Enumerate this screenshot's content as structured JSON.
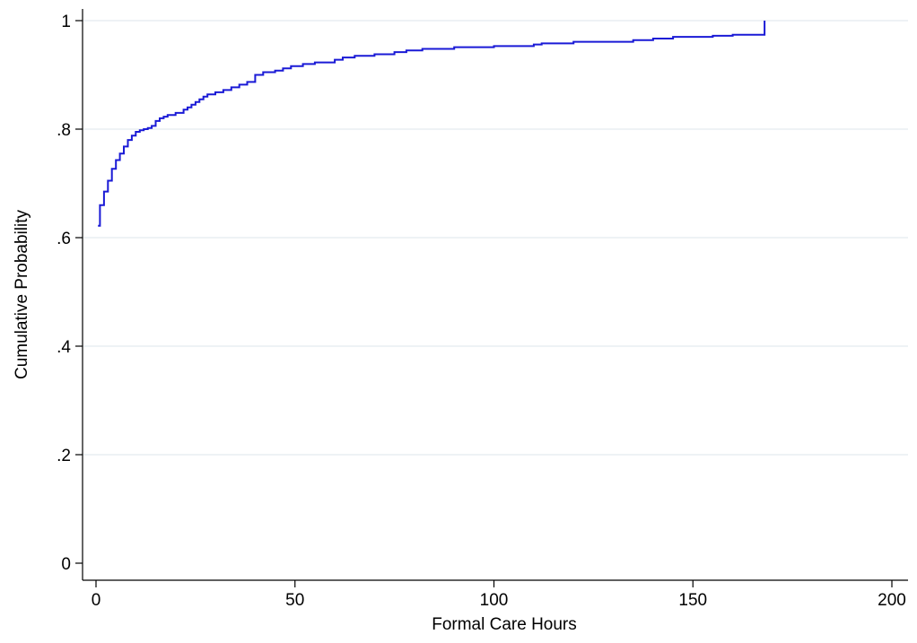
{
  "chart_data": {
    "type": "line",
    "title": "",
    "xlabel": "Formal Care Hours",
    "ylabel": "Cumulative Probability",
    "xlim": [
      0,
      200
    ],
    "ylim": [
      0,
      1
    ],
    "x_ticks": [
      {
        "value": 0,
        "label": "0"
      },
      {
        "value": 50,
        "label": "50"
      },
      {
        "value": 100,
        "label": "100"
      },
      {
        "value": 150,
        "label": "150"
      },
      {
        "value": 200,
        "label": "200"
      }
    ],
    "y_ticks": [
      {
        "value": 0,
        "label": "0"
      },
      {
        "value": 0.2,
        "label": ".2"
      },
      {
        "value": 0.4,
        "label": ".4"
      },
      {
        "value": 0.6,
        "label": ".6"
      },
      {
        "value": 0.8,
        "label": ".8"
      },
      {
        "value": 1,
        "label": "1"
      }
    ],
    "grid": "horizontal",
    "line_color": "#1a1ad6",
    "grid_color": "#e8eef2",
    "step": true,
    "series": [
      {
        "points": [
          [
            0.5,
            0.622
          ],
          [
            1,
            0.66
          ],
          [
            2,
            0.685
          ],
          [
            3,
            0.705
          ],
          [
            4,
            0.727
          ],
          [
            5,
            0.743
          ],
          [
            6,
            0.755
          ],
          [
            7,
            0.768
          ],
          [
            8,
            0.78
          ],
          [
            9,
            0.788
          ],
          [
            10,
            0.795
          ],
          [
            11,
            0.798
          ],
          [
            12,
            0.8
          ],
          [
            13,
            0.802
          ],
          [
            14,
            0.806
          ],
          [
            15,
            0.815
          ],
          [
            16,
            0.82
          ],
          [
            17,
            0.823
          ],
          [
            18,
            0.826
          ],
          [
            20,
            0.83
          ],
          [
            22,
            0.836
          ],
          [
            23,
            0.84
          ],
          [
            24,
            0.845
          ],
          [
            25,
            0.85
          ],
          [
            26,
            0.855
          ],
          [
            27,
            0.86
          ],
          [
            28,
            0.864
          ],
          [
            30,
            0.868
          ],
          [
            32,
            0.872
          ],
          [
            34,
            0.877
          ],
          [
            36,
            0.882
          ],
          [
            38,
            0.887
          ],
          [
            40,
            0.9
          ],
          [
            42,
            0.905
          ],
          [
            45,
            0.908
          ],
          [
            47,
            0.912
          ],
          [
            49,
            0.916
          ],
          [
            52,
            0.92
          ],
          [
            55,
            0.923
          ],
          [
            60,
            0.928
          ],
          [
            62,
            0.932
          ],
          [
            65,
            0.935
          ],
          [
            70,
            0.938
          ],
          [
            75,
            0.942
          ],
          [
            78,
            0.945
          ],
          [
            82,
            0.948
          ],
          [
            90,
            0.951
          ],
          [
            100,
            0.953
          ],
          [
            110,
            0.956
          ],
          [
            112,
            0.958
          ],
          [
            120,
            0.961
          ],
          [
            135,
            0.964
          ],
          [
            140,
            0.967
          ],
          [
            145,
            0.97
          ],
          [
            155,
            0.972
          ],
          [
            160,
            0.974
          ],
          [
            168,
            0.977
          ],
          [
            168,
            1.0
          ]
        ]
      }
    ]
  }
}
